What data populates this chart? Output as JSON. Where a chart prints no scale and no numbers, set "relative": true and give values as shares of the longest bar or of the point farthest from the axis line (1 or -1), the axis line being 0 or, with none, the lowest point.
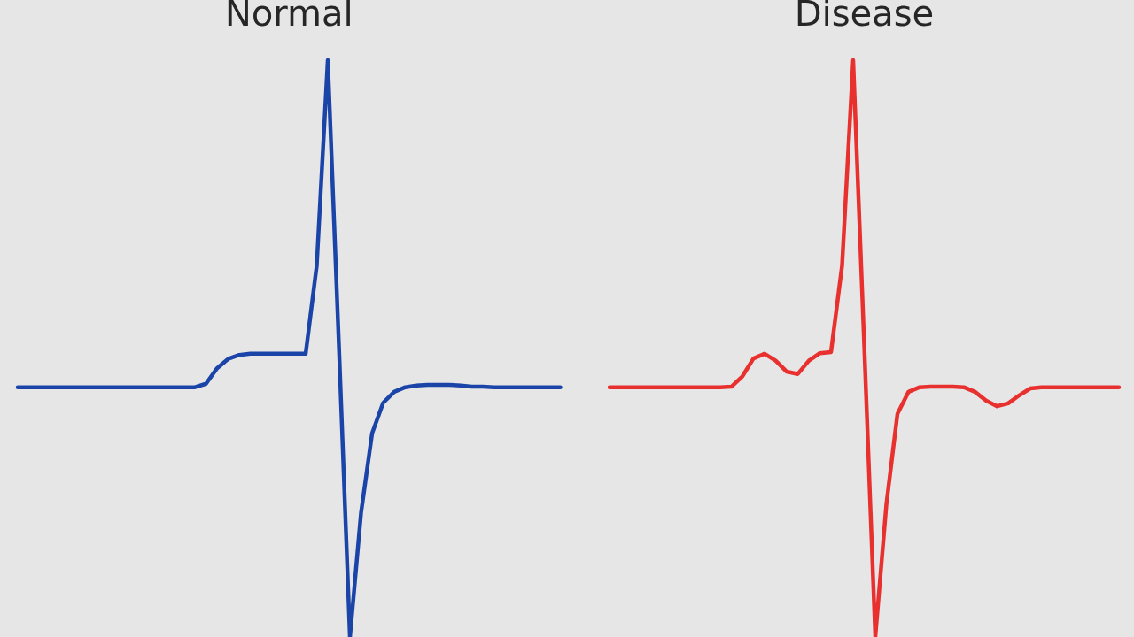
{
  "chart_data": [
    {
      "type": "line",
      "title": "Normal",
      "relative": true,
      "categories": [
        null,
        null,
        null,
        null,
        null,
        null,
        null,
        null,
        null,
        null,
        null,
        null,
        null,
        null,
        null,
        null,
        null,
        null,
        null,
        null,
        null,
        null,
        null,
        null,
        null,
        null,
        null,
        null,
        null,
        null,
        null,
        null,
        null,
        null,
        null,
        null,
        null,
        null,
        null,
        null,
        null,
        null,
        null,
        null,
        null,
        null,
        null,
        null,
        null,
        null
      ],
      "series": [
        {
          "color": "#1a44a8",
          "values": [
            0.433,
            0.433,
            0.433,
            0.433,
            0.433,
            0.433,
            0.433,
            0.433,
            0.433,
            0.433,
            0.433,
            0.433,
            0.433,
            0.433,
            0.433,
            0.433,
            0.433,
            0.439,
            0.466,
            0.482,
            0.489,
            0.491,
            0.491,
            0.491,
            0.491,
            0.491,
            0.491,
            0.644,
            1,
            0.506,
            0,
            0.215,
            0.353,
            0.406,
            0.425,
            0.433,
            0.436,
            0.437,
            0.437,
            0.437,
            0.436,
            0.434,
            0.434,
            0.433,
            0.433,
            0.433,
            0.433,
            0.433,
            0.433,
            0.433
          ]
        }
      ]
    },
    {
      "type": "line",
      "title": "Disease",
      "relative": true,
      "categories": [
        null,
        null,
        null,
        null,
        null,
        null,
        null,
        null,
        null,
        null,
        null,
        null,
        null,
        null,
        null,
        null,
        null,
        null,
        null,
        null,
        null,
        null,
        null,
        null,
        null,
        null,
        null,
        null,
        null,
        null,
        null,
        null,
        null,
        null,
        null,
        null,
        null,
        null,
        null,
        null,
        null,
        null,
        null,
        null,
        null,
        null,
        null
      ],
      "series": [
        {
          "color": "#e8302e",
          "values": [
            0.433,
            0.433,
            0.433,
            0.433,
            0.433,
            0.433,
            0.433,
            0.433,
            0.433,
            0.433,
            0.433,
            0.434,
            0.452,
            0.483,
            0.491,
            0.479,
            0.46,
            0.456,
            0.479,
            0.492,
            0.494,
            0.644,
            1,
            0.506,
            0,
            0.23,
            0.387,
            0.425,
            0.433,
            0.434,
            0.434,
            0.434,
            0.433,
            0.425,
            0.41,
            0.4,
            0.405,
            0.419,
            0.431,
            0.433,
            0.433,
            0.433,
            0.433,
            0.433,
            0.433,
            0.433,
            0.433
          ]
        }
      ]
    }
  ]
}
